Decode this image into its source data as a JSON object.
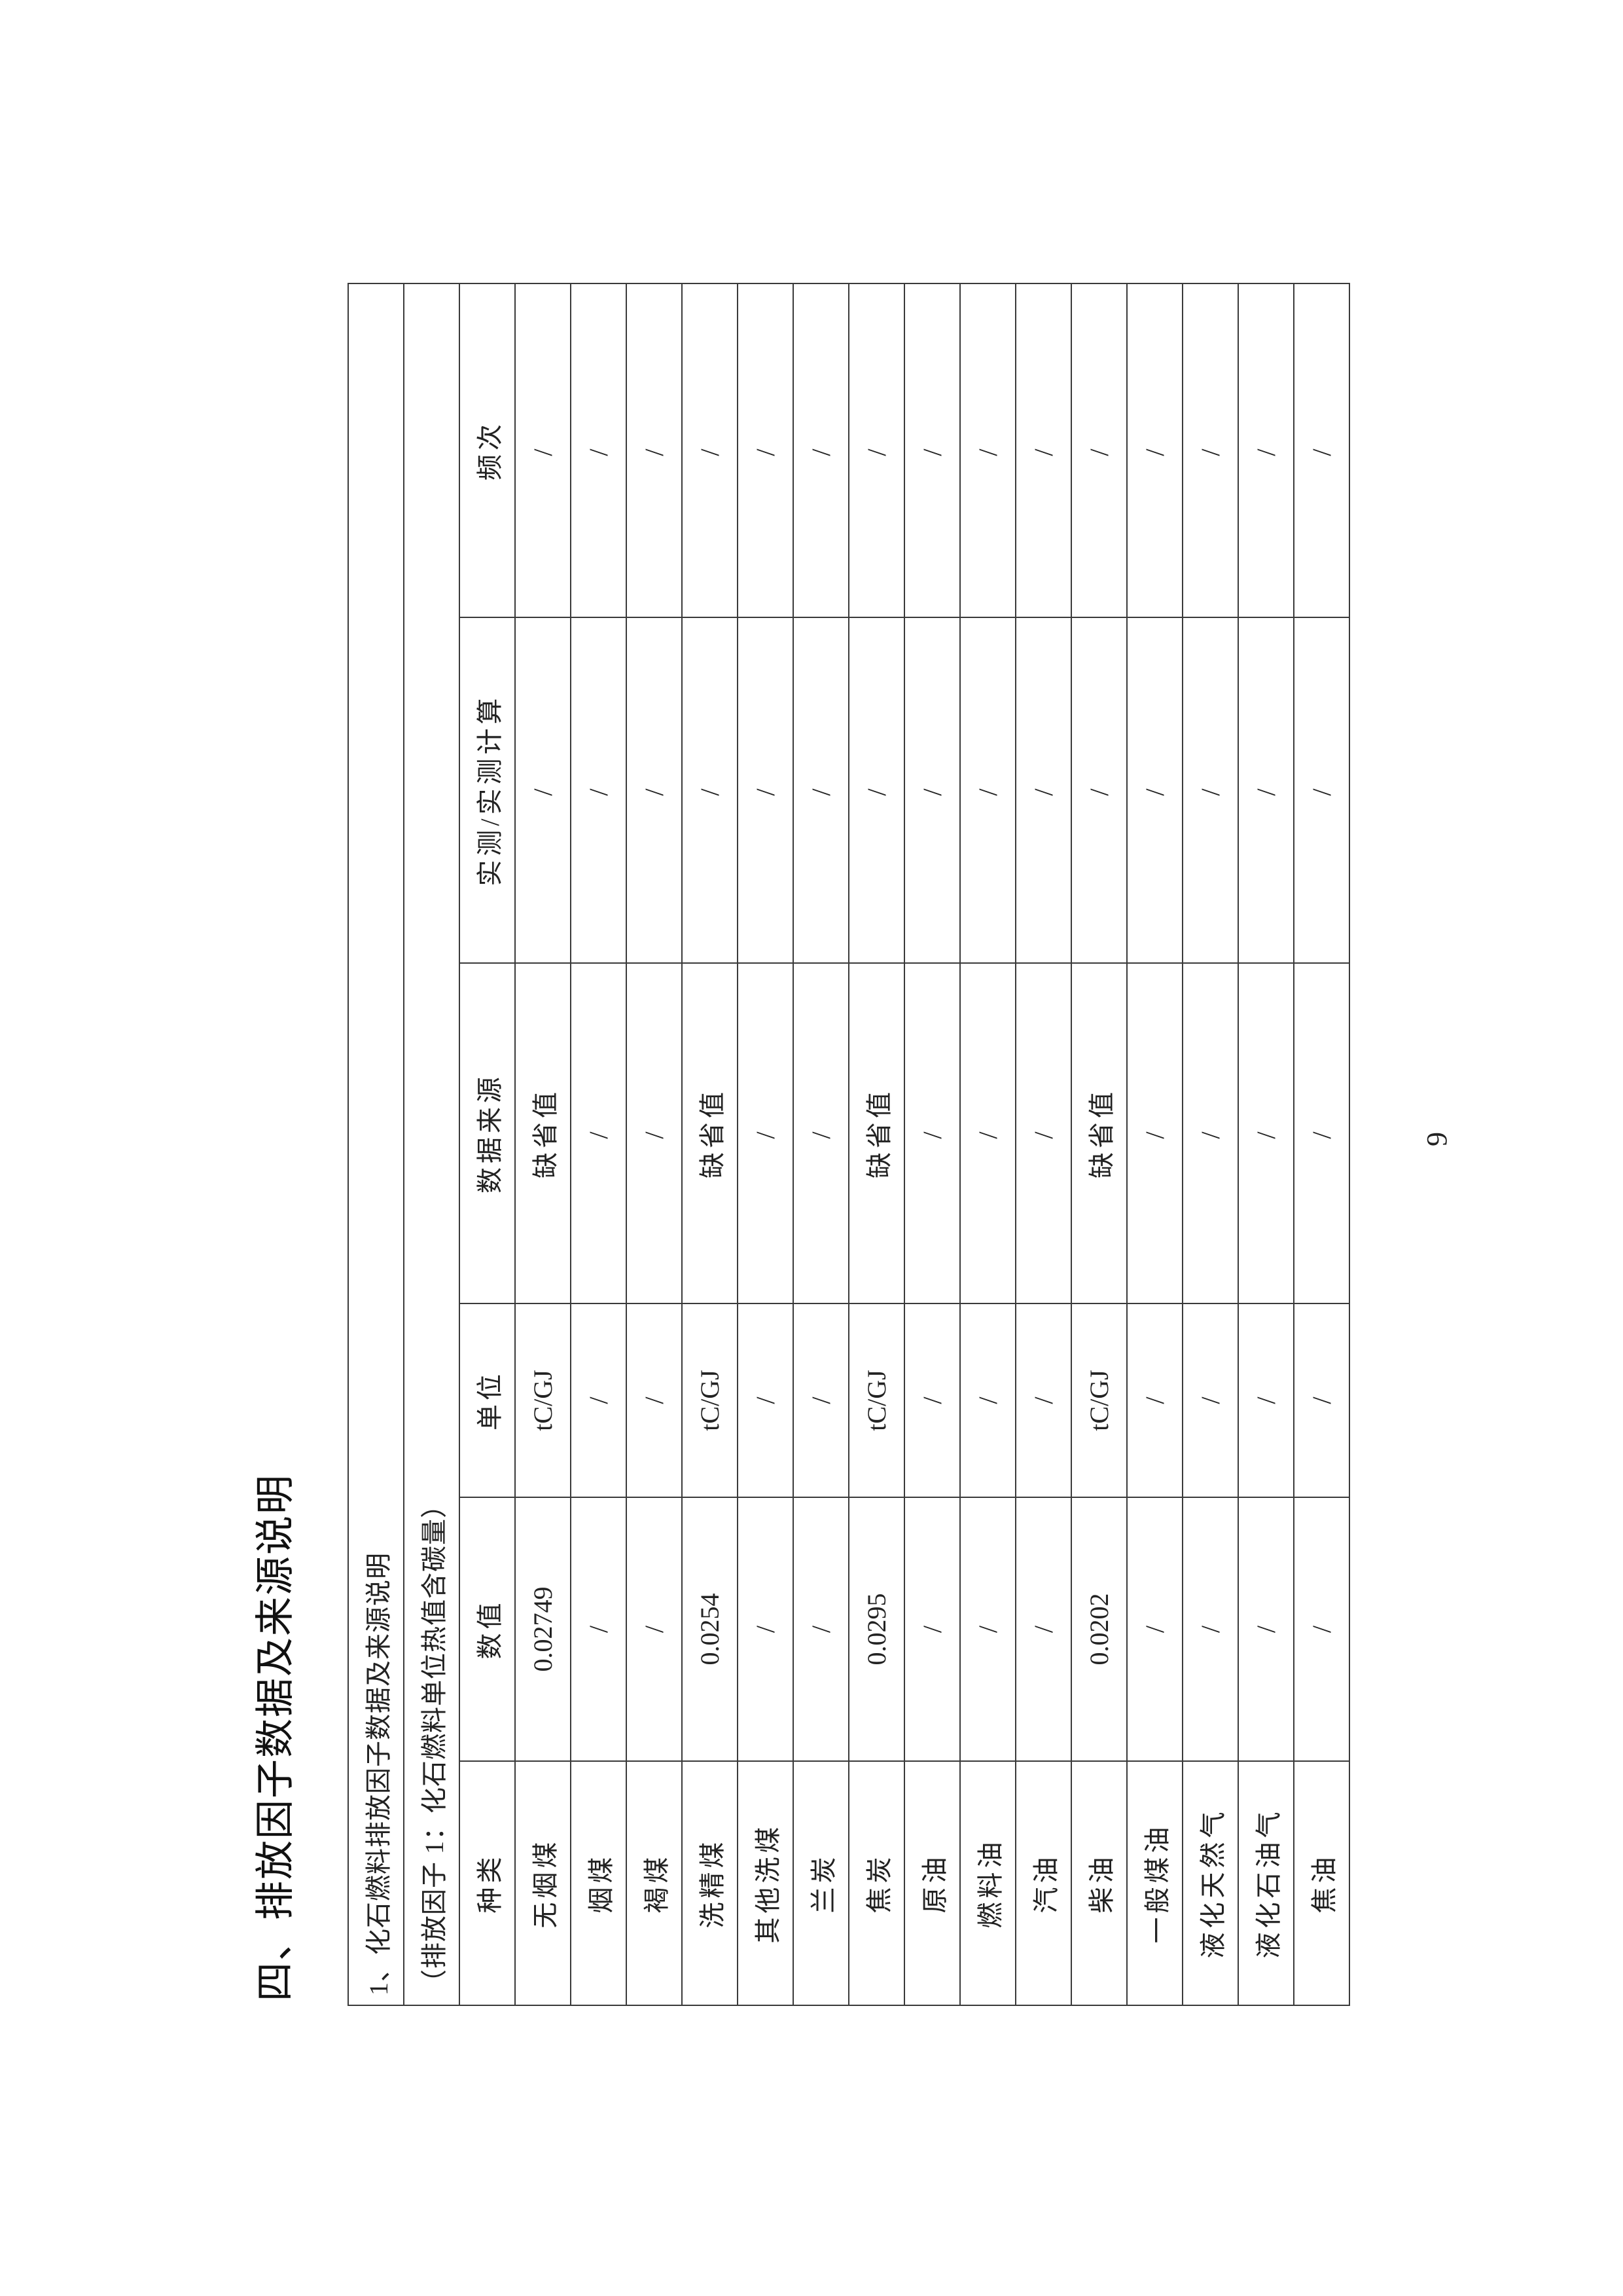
{
  "section_title": "四、排放因子数据及来源说明",
  "table": {
    "caption": "1、化石燃料排放因子数据及来源说明",
    "subcaption": "（排放因子 1：化石燃料单位热值含碳量）",
    "headers": [
      "种类",
      "数值",
      "单位",
      "数据来源",
      "实测/实测计算",
      "频次"
    ],
    "rows": [
      [
        "无烟煤",
        "0.02749",
        "tC/GJ",
        "缺省值",
        "/",
        "/"
      ],
      [
        "烟煤",
        "/",
        "/",
        "/",
        "/",
        "/"
      ],
      [
        "褐煤",
        "/",
        "/",
        "/",
        "/",
        "/"
      ],
      [
        "洗精煤",
        "0.0254",
        "tC/GJ",
        "缺省值",
        "/",
        "/"
      ],
      [
        "其他洗煤",
        "/",
        "/",
        "/",
        "/",
        "/"
      ],
      [
        "兰炭",
        "/",
        "/",
        "/",
        "/",
        "/"
      ],
      [
        "焦炭",
        "0.0295",
        "tC/GJ",
        "缺省值",
        "/",
        "/"
      ],
      [
        "原油",
        "/",
        "/",
        "/",
        "/",
        "/"
      ],
      [
        "燃料油",
        "/",
        "/",
        "/",
        "/",
        "/"
      ],
      [
        "汽油",
        "/",
        "/",
        "/",
        "/",
        "/"
      ],
      [
        "柴油",
        "0.0202",
        "tC/GJ",
        "缺省值",
        "/",
        "/"
      ],
      [
        "一般煤油",
        "/",
        "/",
        "/",
        "/",
        "/"
      ],
      [
        "液化天然气",
        "/",
        "/",
        "/",
        "/",
        "/"
      ],
      [
        "液化石油气",
        "/",
        "/",
        "/",
        "/",
        "/"
      ],
      [
        "焦油",
        "/",
        "/",
        "/",
        "/",
        "/"
      ]
    ]
  },
  "page_number": "9"
}
